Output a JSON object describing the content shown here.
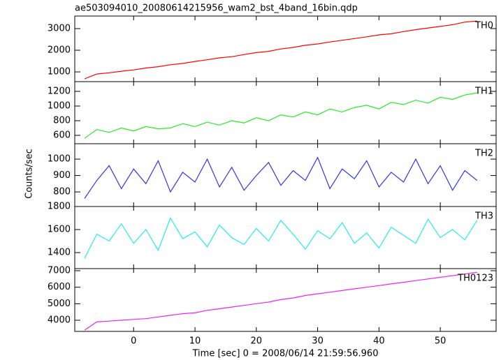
{
  "chart_data": [
    {
      "type": "line",
      "title": "ae503094010_20080614215956_wam2_bst_4band_16bin.qdp",
      "x": [
        -8,
        -6,
        -4,
        -2,
        0,
        2,
        4,
        6,
        8,
        10,
        12,
        14,
        16,
        18,
        20,
        22,
        24,
        26,
        28,
        30,
        32,
        34,
        36,
        38,
        40,
        42,
        44,
        46,
        48,
        50,
        52,
        54,
        56
      ],
      "series": [
        {
          "name": "TH0",
          "color": "#ff0000",
          "values": [
            680,
            900,
            960,
            1030,
            1090,
            1180,
            1240,
            1330,
            1390,
            1480,
            1560,
            1650,
            1700,
            1800,
            1890,
            1950,
            2060,
            2130,
            2230,
            2290,
            2380,
            2460,
            2540,
            2620,
            2710,
            2760,
            2860,
            2950,
            3030,
            3100,
            3180,
            3300,
            3350
          ]
        }
      ],
      "xlim": [
        -9.6,
        59.1
      ],
      "ylim": [
        550,
        3580
      ],
      "yticks": [
        1000,
        2000,
        3000
      ]
    },
    {
      "type": "line",
      "x": [
        -8,
        -6,
        -4,
        -2,
        0,
        2,
        4,
        6,
        8,
        10,
        12,
        14,
        16,
        18,
        20,
        22,
        24,
        26,
        28,
        30,
        32,
        34,
        36,
        38,
        40,
        42,
        44,
        46,
        48,
        50,
        52,
        54,
        56
      ],
      "series": [
        {
          "name": "TH1",
          "color": "#22ee22",
          "values": [
            560,
            680,
            640,
            700,
            660,
            720,
            690,
            700,
            760,
            720,
            780,
            740,
            800,
            770,
            840,
            800,
            880,
            850,
            920,
            880,
            960,
            920,
            980,
            1010,
            960,
            1050,
            1020,
            1080,
            1040,
            1120,
            1090,
            1150,
            1180
          ]
        }
      ],
      "xlim": [
        -9.6,
        59.1
      ],
      "ylim": [
        486,
        1333
      ],
      "yticks": [
        600,
        800,
        1000,
        1200
      ]
    },
    {
      "type": "line",
      "ylabel": "Counts/sec",
      "x": [
        -8,
        -6,
        -4,
        -2,
        0,
        2,
        4,
        6,
        8,
        10,
        12,
        14,
        16,
        18,
        20,
        22,
        24,
        26,
        28,
        30,
        32,
        34,
        36,
        38,
        40,
        42,
        44,
        46,
        48,
        50,
        52,
        54,
        56
      ],
      "series": [
        {
          "name": "TH2",
          "color": "#3333ee",
          "values": [
            760,
            870,
            960,
            820,
            940,
            850,
            990,
            800,
            920,
            860,
            1000,
            830,
            950,
            810,
            900,
            980,
            840,
            930,
            870,
            1010,
            820,
            940,
            880,
            990,
            830,
            920,
            860,
            1000,
            850,
            960,
            810,
            930,
            870
          ]
        }
      ],
      "xlim": [
        -9.6,
        59.1
      ],
      "ylim": [
        711,
        1094
      ],
      "yticks": [
        800,
        900,
        1000
      ]
    },
    {
      "type": "line",
      "x": [
        -8,
        -6,
        -4,
        -2,
        0,
        2,
        4,
        6,
        8,
        10,
        12,
        14,
        16,
        18,
        20,
        22,
        24,
        26,
        28,
        30,
        32,
        34,
        36,
        38,
        40,
        42,
        44,
        46,
        48,
        50,
        52,
        54,
        56
      ],
      "series": [
        {
          "name": "TH3",
          "color": "#22eeee",
          "values": [
            1350,
            1560,
            1500,
            1650,
            1480,
            1600,
            1420,
            1700,
            1520,
            1580,
            1450,
            1640,
            1530,
            1470,
            1610,
            1500,
            1680,
            1560,
            1430,
            1590,
            1520,
            1660,
            1480,
            1570,
            1440,
            1620,
            1550,
            1480,
            1690,
            1530,
            1600,
            1510,
            1680
          ]
        }
      ],
      "xlim": [
        -9.6,
        59.1
      ],
      "ylim": [
        1261,
        1800
      ],
      "yticks": [
        1400,
        1600,
        1800
      ]
    },
    {
      "type": "line",
      "xlabel": "Time [sec] 0 = 2008/06/14 21:59:56.960",
      "x": [
        -8,
        -6,
        -4,
        -2,
        0,
        2,
        4,
        6,
        8,
        10,
        12,
        14,
        16,
        18,
        20,
        22,
        24,
        26,
        28,
        30,
        32,
        34,
        36,
        38,
        40,
        42,
        44,
        46,
        48,
        50,
        52,
        54,
        56
      ],
      "series": [
        {
          "name": "TH0123",
          "color": "#ee22ee",
          "values": [
            3400,
            3900,
            3950,
            4000,
            4050,
            4100,
            4200,
            4300,
            4400,
            4450,
            4600,
            4700,
            4800,
            4900,
            5000,
            5100,
            5250,
            5350,
            5500,
            5600,
            5700,
            5800,
            5900,
            6000,
            6100,
            6200,
            6300,
            6400,
            6500,
            6600,
            6700,
            6800,
            6900
          ]
        }
      ],
      "xlim": [
        -9.6,
        59.1
      ],
      "ylim": [
        3325,
        7127
      ],
      "yticks": [
        4000,
        5000,
        6000,
        7000
      ],
      "xticks": [
        0,
        10,
        20,
        30,
        40,
        50
      ]
    }
  ]
}
